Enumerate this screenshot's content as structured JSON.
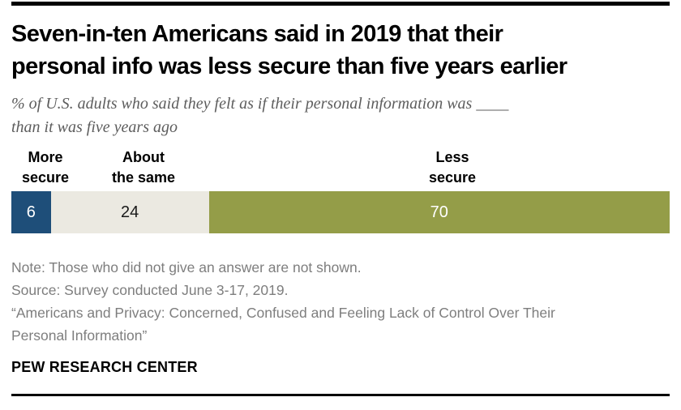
{
  "header": {
    "title": "Seven-in-ten Americans said in 2019 that their\npersonal info was less secure than five years earlier",
    "subtitle": "% of U.S. adults who said they felt as if their personal information was ____\nthan it was five years ago"
  },
  "chart_data": {
    "type": "bar",
    "subtype": "horizontal-stacked",
    "categories": [
      "More secure",
      "About the same",
      "Less secure"
    ],
    "values": [
      6,
      24,
      70
    ],
    "unit": "%",
    "xlim": [
      0,
      100
    ],
    "colors": [
      "#1e4e79",
      "#ebe9e1",
      "#949d48"
    ],
    "value_label_colors": [
      "#ffffff",
      "#1a1a1a",
      "#ffffff"
    ],
    "category_labels_position": "above-segments",
    "grid": false,
    "title": "Seven-in-ten Americans said in 2019 that their personal info was less secure than five years earlier",
    "xlabel": "",
    "ylabel": ""
  },
  "segments": [
    {
      "label": "More\nsecure",
      "value": "6"
    },
    {
      "label": "About\nthe same",
      "value": "24"
    },
    {
      "label": "Less\nsecure",
      "value": "70"
    }
  ],
  "footnotes": {
    "note": "Note: Those who did not give an answer are not shown.",
    "source": "Source: Survey conducted June 3-17, 2019.",
    "report": "“Americans and Privacy: Concerned, Confused and Feeling Lack of Control Over Their\nPersonal Information”"
  },
  "footer": {
    "brand": "PEW RESEARCH CENTER"
  }
}
